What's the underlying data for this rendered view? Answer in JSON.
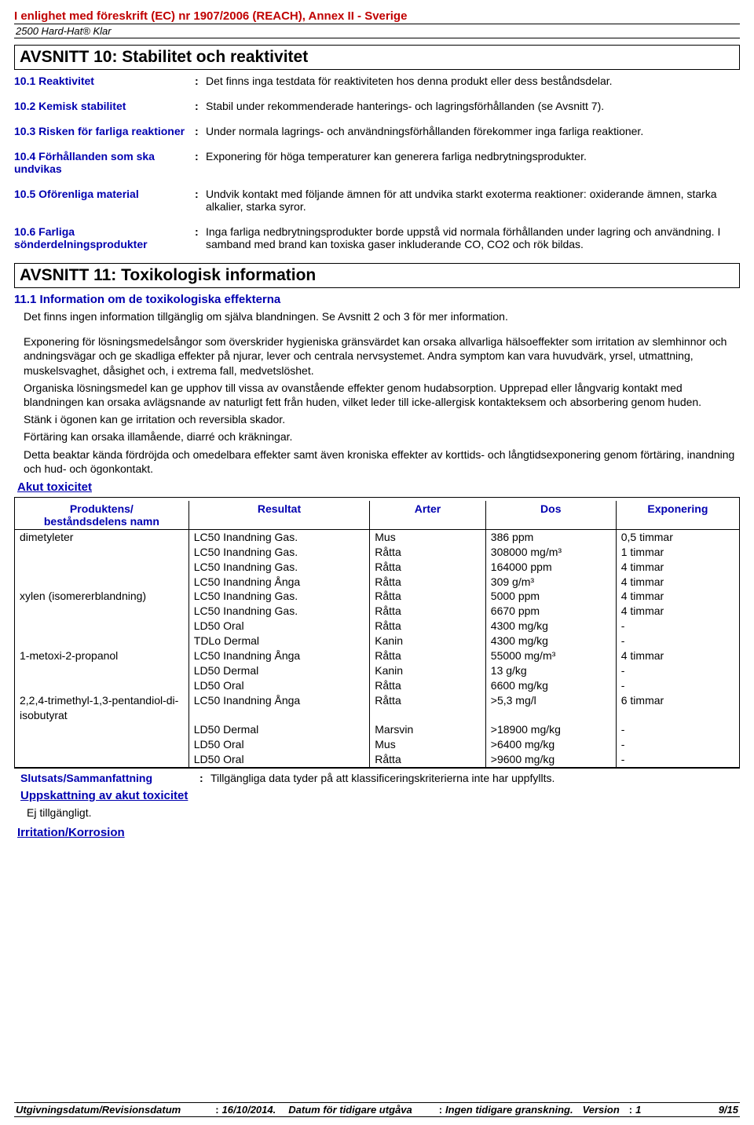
{
  "header": {
    "regulation": "I enlighet med föreskrift (EC) nr 1907/2006 (REACH), Annex II - Sverige",
    "product": "2500 Hard-Hat® Klar"
  },
  "section10": {
    "title": "AVSNITT 10: Stabilitet och reaktivitet",
    "rows": [
      {
        "label": "10.1 Reaktivitet",
        "value": "Det finns inga testdata för reaktiviteten hos denna produkt eller dess beståndsdelar."
      },
      {
        "label": "10.2 Kemisk stabilitet",
        "value": "Stabil under rekommenderade hanterings- och lagringsförhållanden (se Avsnitt 7)."
      },
      {
        "label": "10.3 Risken för farliga reaktioner",
        "value": "Under normala lagrings- och användningsförhållanden förekommer inga farliga reaktioner."
      },
      {
        "label": "10.4 Förhållanden som ska undvikas",
        "value": "Exponering för höga temperaturer kan generera farliga nedbrytningsprodukter."
      },
      {
        "label": "10.5 Oförenliga material",
        "value": "Undvik kontakt med följande ämnen för att undvika starkt exoterma reaktioner: oxiderande ämnen, starka alkalier, starka syror."
      },
      {
        "label": "10.6 Farliga sönderdelningsprodukter",
        "value": "Inga farliga nedbrytningsprodukter borde uppstå vid normala förhållanden under lagring och användning. I samband med brand kan toxiska gaser inkluderande CO, CO2 och rök bildas."
      }
    ]
  },
  "section11": {
    "title": "AVSNITT 11: Toxikologisk information",
    "sub1": "11.1 Information om de toxikologiska effekterna",
    "intro": "Det finns ingen information tillgänglig om själva blandningen. Se Avsnitt 2 och 3 för mer information.",
    "body1": "Exponering för lösningsmedelsångor som överskrider hygieniska gränsvärdet kan orsaka allvarliga hälsoeffekter som irritation av slemhinnor och andningsvägar och ge skadliga effekter på njurar, lever och centrala nervsystemet. Andra symptom kan vara huvudvärk, yrsel, utmattning, muskelsvaghet, dåsighet och, i extrema fall, medvetslöshet.",
    "body2": "Organiska lösningsmedel kan ge upphov till vissa av ovanstående effekter genom hudabsorption. Upprepad eller långvarig kontakt med blandningen kan orsaka avlägsnande av naturligt fett från huden, vilket leder till icke-allergisk kontakteksem och absorbering genom huden.",
    "body3": "Stänk i ögonen kan ge irritation och reversibla skador.",
    "body4": "Förtäring kan orsaka illamående, diarré och kräkningar.",
    "body5": "Detta beaktar kända fördröjda och omedelbara effekter samt även kroniska effekter av korttids- och långtidsexponering genom förtäring, inandning och hud- och ögonkontakt.",
    "acuteTitle": "Akut toxicitet",
    "table": {
      "headers": [
        "Produktens/\nbeståndsdelens namn",
        "Resultat",
        "Arter",
        "Dos",
        "Exponering"
      ],
      "col_widths": [
        "24%",
        "25%",
        "16%",
        "18%",
        "17%"
      ],
      "rows": [
        [
          "dimetyleter",
          "LC50 Inandning Gas.",
          "Mus",
          "386 ppm",
          "0,5 timmar"
        ],
        [
          "",
          "LC50 Inandning Gas.",
          "Råtta",
          "308000 mg/m³",
          "1 timmar"
        ],
        [
          "",
          "LC50 Inandning Gas.",
          "Råtta",
          "164000 ppm",
          "4 timmar"
        ],
        [
          "",
          "LC50 Inandning Ånga",
          "Råtta",
          "309 g/m³",
          "4 timmar"
        ],
        [
          "xylen (isomererblandning)",
          "LC50 Inandning Gas.",
          "Råtta",
          "5000 ppm",
          "4 timmar"
        ],
        [
          "",
          "LC50 Inandning Gas.",
          "Råtta",
          "6670 ppm",
          "4 timmar"
        ],
        [
          "",
          "LD50 Oral",
          "Råtta",
          "4300 mg/kg",
          "-"
        ],
        [
          "",
          "TDLo Dermal",
          "Kanin",
          "4300 mg/kg",
          "-"
        ],
        [
          "1-metoxi-2-propanol",
          "LC50 Inandning Ånga",
          "Råtta",
          "55000 mg/m³",
          "4 timmar"
        ],
        [
          "",
          "LD50 Dermal",
          "Kanin",
          "13 g/kg",
          "-"
        ],
        [
          "",
          "LD50 Oral",
          "Råtta",
          "6600 mg/kg",
          "-"
        ],
        [
          "2,2,4-trimethyl-1,3-pentandiol-di-isobutyrat",
          "LC50 Inandning Ånga",
          "Råtta",
          ">5,3 mg/l",
          "6 timmar"
        ],
        [
          "",
          "LD50 Dermal",
          "Marsvin",
          ">18900 mg/kg",
          "-"
        ],
        [
          "",
          "LD50 Oral",
          "Mus",
          ">6400 mg/kg",
          "-"
        ],
        [
          "",
          "LD50 Oral",
          "Råtta",
          ">9600 mg/kg",
          "-"
        ]
      ]
    },
    "conclusionLabel": "Slutsats/Sammanfattning",
    "conclusionValue": "Tillgängliga data tyder på att klassificeringskriterierna inte har uppfyllts.",
    "estTitle": "Uppskattning av akut toxicitet",
    "estValue": "Ej tillgängligt.",
    "irritTitle": "Irritation/Korrosion"
  },
  "footer": {
    "dateLabel": "Utgivningsdatum/Revisionsdatum",
    "dateValue": "16/10/2014.",
    "prevLabel": "Datum för tidigare utgåva",
    "prevValue": "Ingen tidigare granskning.",
    "versionLabel": "Version",
    "versionValue": "1",
    "page": "9/15"
  }
}
